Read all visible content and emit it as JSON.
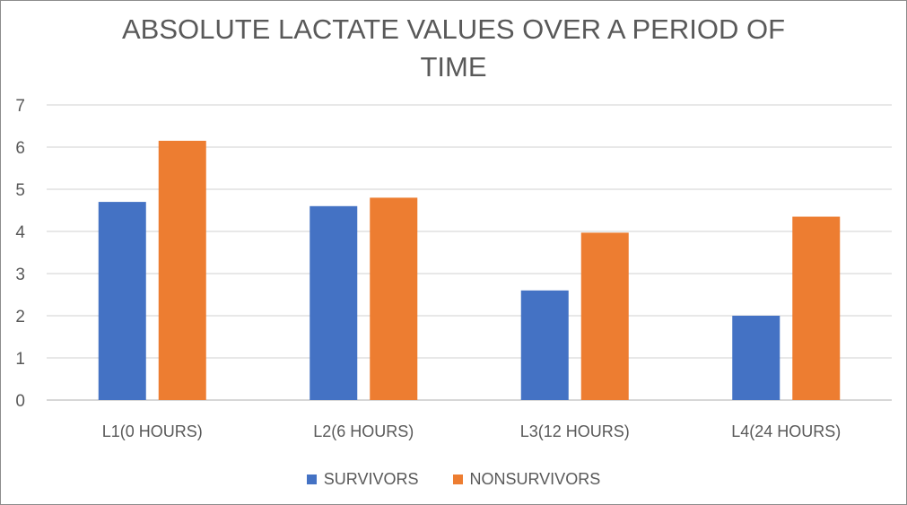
{
  "chart_data": {
    "type": "bar",
    "title_lines": [
      "ABSOLUTE LACTATE VALUES OVER A PERIOD OF",
      "TIME"
    ],
    "categories": [
      "L1(0 HOURS)",
      "L2(6 HOURS)",
      "L3(12 HOURS)",
      "L4(24 HOURS)"
    ],
    "series": [
      {
        "name": "SURVIVORS",
        "color": "#4472C4",
        "values": [
          4.7,
          4.6,
          2.6,
          2.0
        ]
      },
      {
        "name": "NONSURVIVORS",
        "color": "#ED7D31",
        "values": [
          6.15,
          4.8,
          3.97,
          4.35
        ]
      }
    ],
    "ylim": [
      0,
      7
    ],
    "yticks": [
      "0",
      "1",
      "2",
      "3",
      "4",
      "5",
      "6",
      "7"
    ],
    "xlabel": "",
    "ylabel": "",
    "grid": true,
    "legend_position": "bottom"
  }
}
